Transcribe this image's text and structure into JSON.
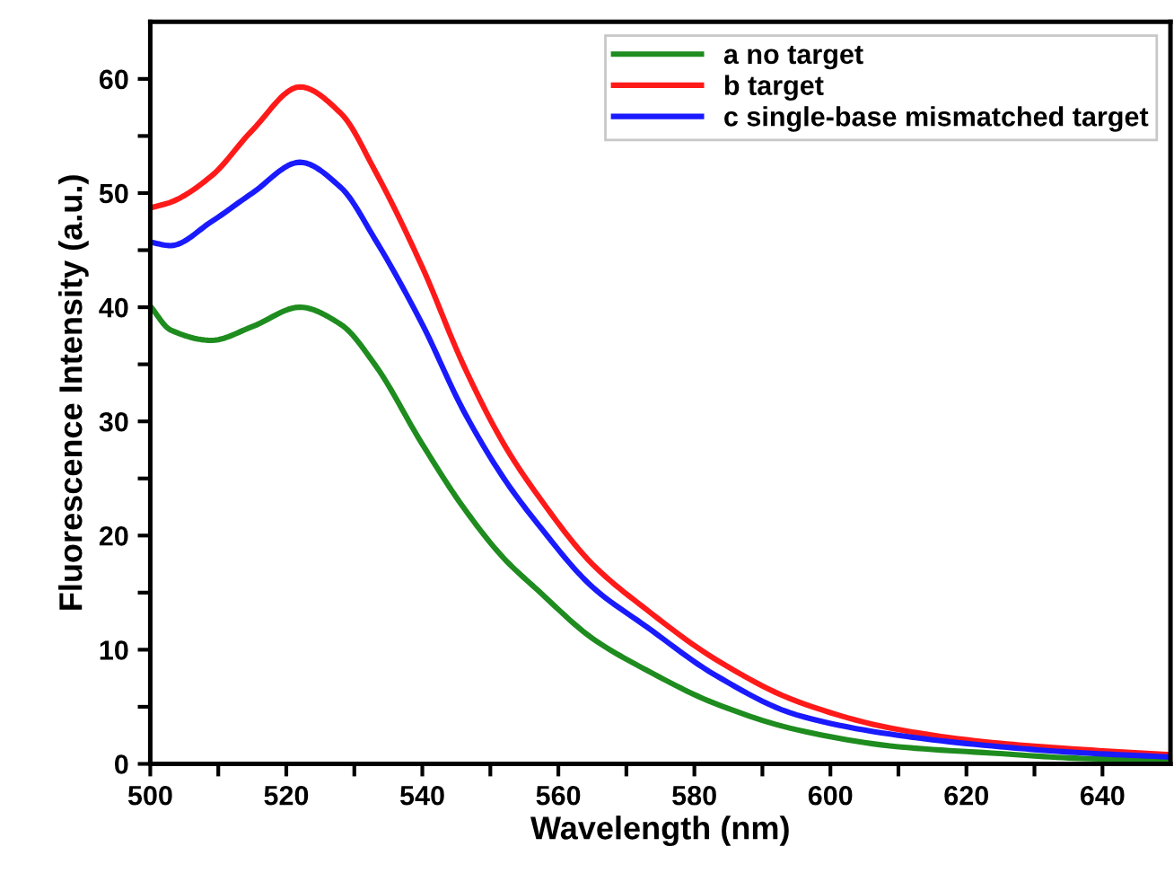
{
  "chart_data": {
    "type": "line",
    "xlabel": "Wavelength (nm)",
    "ylabel": "Fluorescence Intensity (a.u.)",
    "x": [
      500,
      503,
      509,
      515,
      522,
      528,
      533,
      540,
      546,
      552,
      557,
      565,
      573,
      583,
      595,
      610,
      625,
      636,
      650
    ],
    "series": [
      {
        "name": "a no target",
        "color": "#1e8c1e",
        "values": [
          40.1,
          38,
          37.1,
          38.3,
          40,
          38.5,
          35,
          28,
          22.5,
          18,
          15.2,
          11,
          8.2,
          5.3,
          3.0,
          1.5,
          0.9,
          0.5,
          0.3
        ]
      },
      {
        "name": "b target",
        "color": "#ff1a1a",
        "values": [
          48.7,
          49.2,
          51.5,
          55.5,
          59.3,
          57,
          52,
          43.5,
          35,
          28,
          23.5,
          17.5,
          13.5,
          9.2,
          5.5,
          3.0,
          1.8,
          1.3,
          0.8
        ]
      },
      {
        "name": "c single-base mismatched target",
        "color": "#1a1aff",
        "values": [
          45.7,
          45.4,
          47.5,
          50,
          52.7,
          50.5,
          46,
          38.5,
          31,
          25,
          21,
          15.5,
          12,
          7.8,
          4.3,
          2.5,
          1.5,
          1.0,
          0.6
        ]
      }
    ],
    "xlim": [
      500,
      650
    ],
    "ylim": [
      0,
      65
    ],
    "xticks": [
      500,
      {
        "value": 510,
        "label": null
      },
      520,
      {
        "value": 530,
        "label": null
      },
      540,
      {
        "value": 550,
        "label": null
      },
      560,
      {
        "value": 570,
        "label": null
      },
      580,
      {
        "value": 590,
        "label": null
      },
      600,
      {
        "value": 610,
        "label": null
      },
      620,
      {
        "value": 630,
        "label": null
      },
      640
    ],
    "yticks": [
      0,
      {
        "value": 5,
        "label": null
      },
      10,
      {
        "value": 15,
        "label": null
      },
      20,
      {
        "value": 25,
        "label": null
      },
      30,
      {
        "value": 35,
        "label": null
      },
      40,
      {
        "value": 45,
        "label": null
      },
      50,
      {
        "value": 55,
        "label": null
      },
      60
    ],
    "legend": "top right",
    "grid": false,
    "marker": "none",
    "line_style": "solid"
  }
}
